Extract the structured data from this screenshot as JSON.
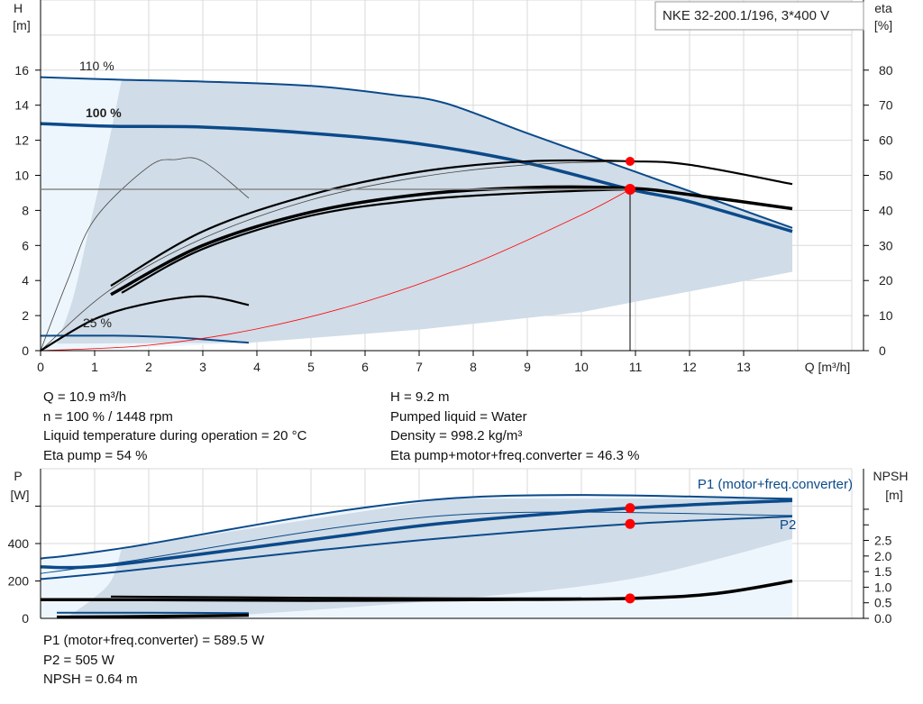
{
  "title": "NKE 32-200.1/196, 3*400 V",
  "colors": {
    "blue": "#0b4a8a",
    "shade": "#d0dce7",
    "light": "#eef6fd",
    "red": "#ff0000",
    "black": "#000000",
    "grid": "#d9d9d9"
  },
  "chart_data": [
    {
      "type": "line",
      "xlabel": "Q [m³/h]",
      "ylabel_left": [
        "H",
        "[m]"
      ],
      "ylabel_right": [
        "eta",
        "[%]"
      ],
      "xlim": [
        0,
        15
      ],
      "ylim": [
        0,
        20
      ],
      "ylim_right": [
        0,
        100
      ],
      "xticks": [
        0,
        1,
        2,
        3,
        4,
        5,
        6,
        7,
        8,
        9,
        10,
        11,
        12,
        13
      ],
      "yticks": [
        0,
        2,
        4,
        6,
        8,
        10,
        12,
        14,
        16
      ],
      "yticks_right": [
        0,
        10,
        20,
        30,
        40,
        50,
        60,
        70,
        80
      ],
      "grid": true,
      "annotations": [
        "110 %",
        "100 %",
        "25 %"
      ],
      "series": [
        {
          "axis": "H",
          "style": "blue",
          "x": [
            0,
            1.5,
            3,
            5,
            6.5,
            7.5,
            9,
            11,
            13.9
          ],
          "y": [
            15.6,
            15.45,
            15.35,
            15.1,
            14.6,
            14.1,
            12.4,
            10.2,
            7.0
          ]
        },
        {
          "axis": "H",
          "style": "blue-thick",
          "x": [
            0,
            1.3,
            3,
            5,
            7,
            9,
            10.9,
            12,
            13.9
          ],
          "y": [
            12.95,
            12.8,
            12.75,
            12.4,
            11.8,
            10.7,
            9.2,
            8.5,
            6.8
          ]
        },
        {
          "axis": "H",
          "style": "blue",
          "x": [
            0,
            1.5,
            2.5,
            3.85
          ],
          "y": [
            0.85,
            0.85,
            0.75,
            0.45
          ]
        },
        {
          "axis": "eta",
          "style": "black",
          "x": [
            1.3,
            3,
            5,
            7,
            9,
            10.9,
            12,
            13.9
          ],
          "y": [
            18.5,
            34,
            44.5,
            51,
            54,
            54,
            53,
            47.5
          ]
        },
        {
          "axis": "eta",
          "style": "thin",
          "x": [
            0,
            1.3,
            3,
            5,
            7,
            9,
            10.9
          ],
          "y": [
            0,
            17.5,
            32,
            43,
            49.5,
            53,
            54
          ]
        },
        {
          "axis": "eta",
          "style": "black-thick",
          "x": [
            1.3,
            3,
            5,
            7,
            9,
            10.9,
            12,
            13.9
          ],
          "y": [
            16,
            30,
            39.5,
            44.5,
            46.5,
            46.3,
            44.5,
            40.5
          ]
        },
        {
          "axis": "eta",
          "style": "black",
          "x": [
            1.5,
            3,
            5,
            7,
            9,
            10.9
          ],
          "y": [
            16.5,
            29,
            38.5,
            43,
            45,
            46
          ]
        },
        {
          "axis": "eta",
          "style": "thin",
          "x": [
            0,
            0.5,
            1,
            2,
            2.5,
            3,
            3.85
          ],
          "y": [
            0,
            20,
            37.5,
            52.5,
            54.5,
            54,
            43.5
          ]
        },
        {
          "axis": "eta",
          "style": "black",
          "x": [
            0,
            1,
            2,
            3,
            3.85
          ],
          "y": [
            0,
            9,
            13.5,
            15.5,
            13
          ]
        },
        {
          "axis": "H",
          "style": "red",
          "x": [
            0,
            2,
            4,
            6,
            8,
            10,
            10.9
          ],
          "y": [
            0,
            0.31,
            1.24,
            2.79,
            4.96,
            7.74,
            9.2
          ]
        }
      ],
      "operating_point": {
        "Q": 10.9,
        "H": 9.2,
        "eta": 54
      }
    },
    {
      "type": "line",
      "ylabel_left": [
        "P",
        "[W]"
      ],
      "ylabel_right": [
        "NPSH",
        "[m]"
      ],
      "xlim": [
        0,
        15
      ],
      "ylim": [
        0,
        800
      ],
      "ylim_right": [
        0,
        4.8
      ],
      "yticks": [
        0,
        200,
        400
      ],
      "yticks_right": [
        "0.0",
        "0.5",
        "1.0",
        "1.5",
        "2.0",
        "2.5"
      ],
      "grid": true,
      "series_labels": [
        "P1 (motor+freq.converter)",
        "P2"
      ],
      "series": [
        {
          "axis": "P",
          "style": "blue",
          "x": [
            0,
            1.5,
            7.5,
            13.9
          ],
          "y": [
            320,
            375,
            640,
            640
          ]
        },
        {
          "axis": "P",
          "style": "thin-blue",
          "x": [
            0,
            1.5,
            7.5,
            13.9
          ],
          "y": [
            240,
            300,
            550,
            550
          ]
        },
        {
          "axis": "P",
          "style": "blue-thick",
          "x": [
            0,
            1.3,
            5,
            7.5,
            10.9,
            13.9
          ],
          "y": [
            275,
            285,
            420,
            510,
            589.5,
            630
          ]
        },
        {
          "axis": "P",
          "style": "blue",
          "x": [
            0,
            1.3,
            5,
            7.5,
            10.9,
            13.9
          ],
          "y": [
            210,
            245,
            360,
            430,
            505,
            545
          ]
        },
        {
          "axis": "P",
          "style": "blue",
          "x": [
            0.3,
            2,
            3.85
          ],
          "y": [
            30,
            30,
            28
          ]
        },
        {
          "axis": "NPSH",
          "style": "black-thick",
          "x": [
            0,
            2,
            5,
            8,
            10.9,
            12.5,
            13.9
          ],
          "y": [
            0.6,
            0.6,
            0.58,
            0.6,
            0.64,
            0.8,
            1.2
          ]
        },
        {
          "axis": "NPSH",
          "style": "black",
          "x": [
            1.3,
            5,
            8,
            10
          ],
          "y": [
            0.7,
            0.66,
            0.64,
            0.64
          ]
        },
        {
          "axis": "NPSH",
          "style": "black-thick",
          "x": [
            0.3,
            2,
            3.85
          ],
          "y": [
            0.04,
            0.06,
            0.1
          ]
        }
      ],
      "operating_point": {
        "Q": 10.9,
        "P1": 589.5,
        "P2": 505,
        "NPSH": 0.64
      }
    }
  ],
  "info_top": {
    "left": [
      "Q = 10.9 m³/h",
      "n = 100 % / 1448 rpm",
      "Liquid temperature during operation = 20 °C",
      "Eta pump = 54 %"
    ],
    "right": [
      "H = 9.2 m",
      "Pumped liquid = Water",
      "Density = 998.2 kg/m³",
      "Eta pump+motor+freq.converter = 46.3 %"
    ]
  },
  "info_bottom": [
    "P1 (motor+freq.converter) = 589.5 W",
    "P2 = 505 W",
    "NPSH = 0.64 m"
  ]
}
